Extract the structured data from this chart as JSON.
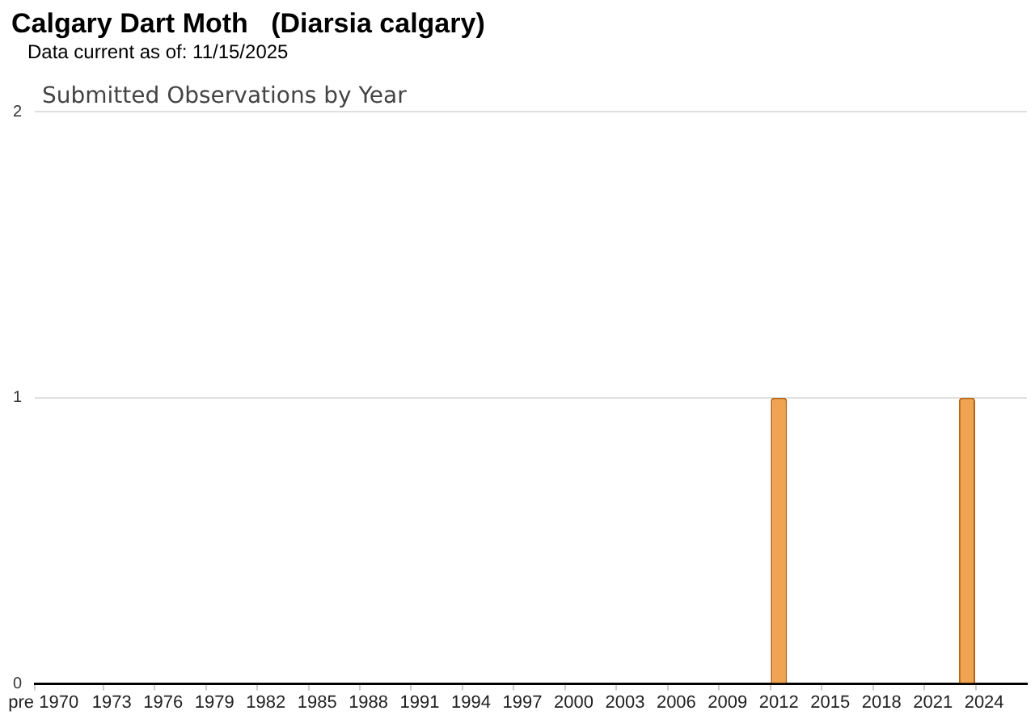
{
  "chart_data": {
    "type": "bar",
    "title": "Calgary Dart Moth   (Diarsia calgary)",
    "subtitle": "Data current as of: 11/15/2025",
    "annotations": [
      "Submitted Observations by Year"
    ],
    "categories": [
      "pre 1970",
      null,
      null,
      null,
      "1973",
      null,
      null,
      "1976",
      null,
      null,
      "1979",
      null,
      null,
      "1982",
      null,
      null,
      "1985",
      null,
      null,
      "1988",
      null,
      null,
      "1991",
      null,
      null,
      "1994",
      null,
      null,
      "1997",
      null,
      null,
      "2000",
      null,
      null,
      "2003",
      null,
      null,
      "2006",
      null,
      null,
      "2009",
      null,
      null,
      "2012",
      null,
      null,
      "2015",
      null,
      null,
      "2018",
      null,
      null,
      "2021",
      null,
      null,
      "2024",
      null,
      null
    ],
    "values": [
      0,
      0,
      0,
      0,
      0,
      0,
      0,
      0,
      0,
      0,
      0,
      0,
      0,
      0,
      0,
      0,
      0,
      0,
      0,
      0,
      0,
      0,
      0,
      0,
      0,
      0,
      0,
      0,
      0,
      0,
      0,
      0,
      0,
      0,
      0,
      0,
      0,
      0,
      0,
      0,
      0,
      0,
      0,
      1,
      0,
      0,
      0,
      0,
      0,
      0,
      0,
      0,
      0,
      0,
      1,
      0,
      0,
      0
    ],
    "color": "#f0a452",
    "ylim": [
      0,
      2
    ],
    "yticks": [
      0,
      1,
      2
    ],
    "grid": "y",
    "legend": false
  }
}
